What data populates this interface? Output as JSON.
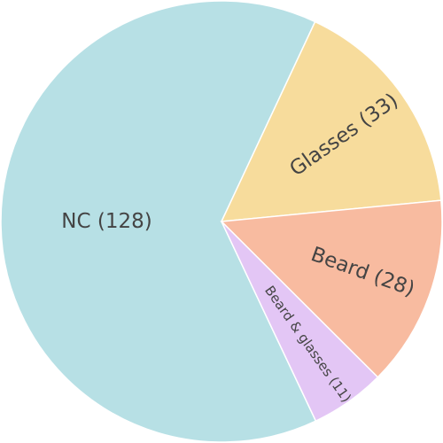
{
  "chart_data": {
    "type": "pie",
    "slices": [
      {
        "label": "NC (128)",
        "value": 128,
        "color": "#b7e0e5"
      },
      {
        "label": "Glasses (33)",
        "value": 33,
        "color": "#f7dc9c"
      },
      {
        "label": "Beard (28)",
        "value": 28,
        "color": "#f8bba0"
      },
      {
        "label": "Beard & glasses (11)",
        "value": 11,
        "color": "#e3c6f5"
      }
    ]
  }
}
